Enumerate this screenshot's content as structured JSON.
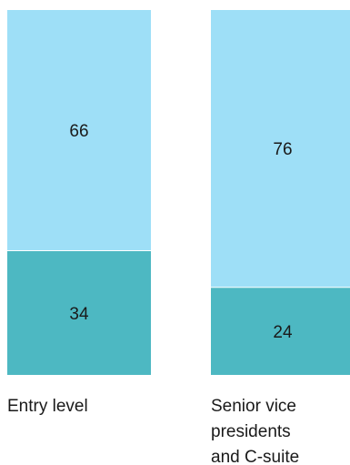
{
  "chart_data": {
    "type": "bar",
    "stacked": true,
    "categories": [
      "Entry level",
      "Senior vice presidents and C-suite"
    ],
    "category_label_lines": [
      [
        "Entry level"
      ],
      [
        "Senior vice",
        "presidents",
        "and C-suite"
      ]
    ],
    "series": [
      {
        "values": [
          34,
          24
        ],
        "color": "#4db8c2"
      },
      {
        "values": [
          66,
          76
        ],
        "color": "#9edff7"
      }
    ],
    "ylim": [
      0,
      100
    ],
    "legend": "none",
    "grid": false
  }
}
